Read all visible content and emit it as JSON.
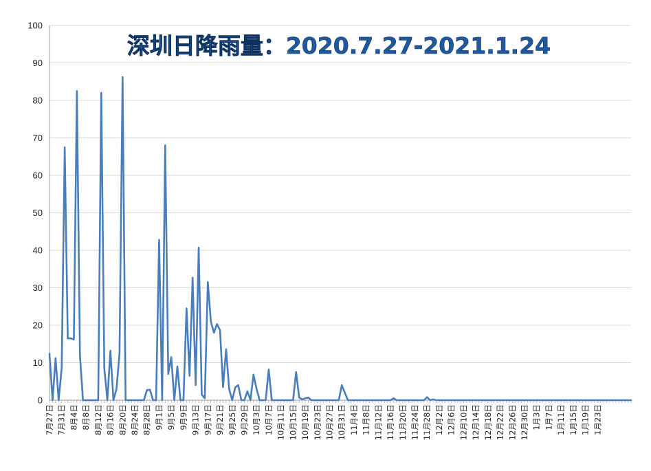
{
  "chart_data": {
    "type": "line",
    "title": "深圳日降雨量：2020.7.27-2021.1.24",
    "xlabel": "",
    "ylabel": "",
    "ylim": [
      0,
      100
    ],
    "yticks": [
      "0",
      "10",
      "20",
      "30",
      "40",
      "50",
      "60",
      "70",
      "80",
      "90",
      "100"
    ],
    "grid": true,
    "legend": "none",
    "tick_labels": [
      "7月27日",
      "7月31日",
      "8月4日",
      "8月8日",
      "8月12日",
      "8月16日",
      "8月20日",
      "8月24日",
      "8月28日",
      "9月1日",
      "9月5日",
      "9月9日",
      "9月13日",
      "9月17日",
      "9月21日",
      "9月25日",
      "9月29日",
      "10月3日",
      "10月7日",
      "10月11日",
      "10月15日",
      "10月19日",
      "10月23日",
      "10月27日",
      "10月31日",
      "11月4日",
      "11月8日",
      "11月12日",
      "11月16日",
      "11月20日",
      "11月24日",
      "11月28日",
      "12月2日",
      "12月6日",
      "12月10日",
      "12月14日",
      "12月18日",
      "12月22日",
      "12月26日",
      "12月30日",
      "1月3日",
      "1月7日",
      "1月11日",
      "1月15日",
      "1月19日",
      "1月23日"
    ],
    "series": [
      {
        "name": "",
        "color": "#4a7ebb",
        "values": [
          12.4,
          0,
          11.2,
          0,
          8.5,
          67.5,
          16.5,
          16.5,
          16.2,
          82.5,
          12,
          0,
          0,
          0,
          0,
          0,
          0,
          82,
          8.5,
          0,
          13.2,
          0,
          3,
          12.5,
          86.2,
          0,
          0,
          0,
          0,
          0,
          0,
          0,
          2.7,
          2.8,
          0,
          0,
          42.8,
          0,
          68,
          7,
          11.5,
          0,
          9,
          0,
          0,
          24.5,
          6.5,
          32.7,
          4,
          40.7,
          1.5,
          0.5,
          31.5,
          21,
          18,
          20.3,
          18.7,
          3.5,
          13.6,
          3,
          0,
          3.4,
          4,
          0,
          0,
          2.4,
          0,
          6.8,
          3,
          0,
          0,
          0,
          8.2,
          0,
          0,
          0,
          0,
          0,
          0,
          0,
          0,
          7.5,
          0.7,
          0.2,
          0.5,
          0.7,
          0,
          0,
          0,
          0,
          0,
          0,
          0,
          0,
          0,
          0,
          4,
          2,
          0,
          0,
          0,
          0,
          0,
          0,
          0,
          0,
          0,
          0,
          0,
          0,
          0,
          0,
          0,
          0.5,
          0,
          0,
          0,
          0,
          0,
          0,
          0,
          0,
          0,
          0,
          0.8,
          0,
          0.2,
          0,
          0,
          0,
          0,
          0,
          0,
          0,
          0,
          0,
          0,
          0,
          0,
          0,
          0,
          0,
          0,
          0,
          0,
          0,
          0,
          0,
          0,
          0,
          0,
          0,
          0,
          0,
          0,
          0,
          0,
          0,
          0,
          0,
          0,
          0,
          0,
          0,
          0,
          0,
          0,
          0,
          0,
          0,
          0,
          0,
          0,
          0,
          0,
          0,
          0,
          0,
          0,
          0,
          0,
          0,
          0,
          0,
          0,
          0,
          0,
          0,
          0,
          0,
          0,
          0
        ]
      }
    ]
  }
}
